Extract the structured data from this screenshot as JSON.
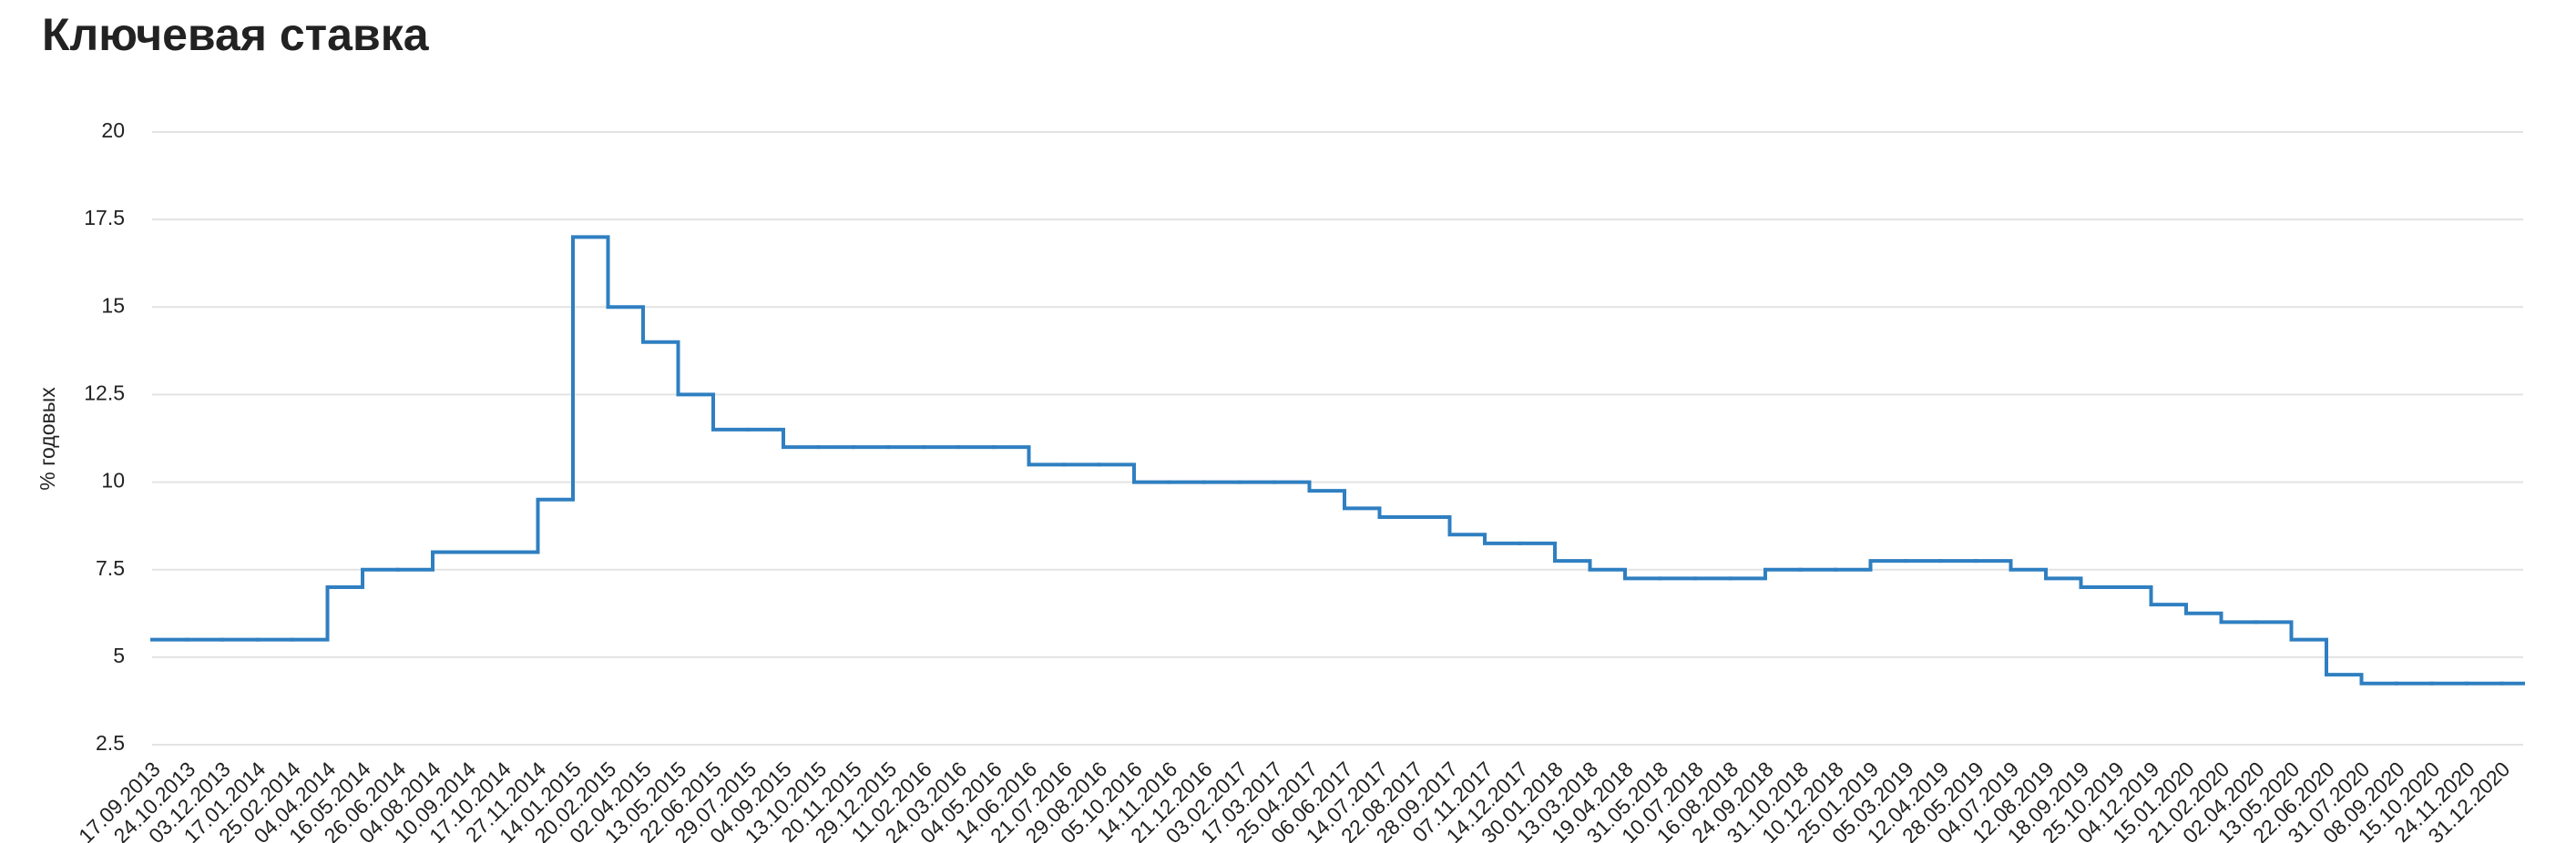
{
  "chart_data": {
    "type": "line",
    "step": "after",
    "title": "Ключевая ставка",
    "y_label": "% годовых",
    "categories": [
      "17.09.2013",
      "24.10.2013",
      "03.12.2013",
      "17.01.2014",
      "25.02.2014",
      "04.04.2014",
      "16.05.2014",
      "26.06.2014",
      "04.08.2014",
      "10.09.2014",
      "17.10.2014",
      "27.11.2014",
      "14.01.2015",
      "20.02.2015",
      "02.04.2015",
      "13.05.2015",
      "22.06.2015",
      "29.07.2015",
      "04.09.2015",
      "13.10.2015",
      "20.11.2015",
      "29.12.2015",
      "11.02.2016",
      "24.03.2016",
      "04.05.2016",
      "14.06.2016",
      "21.07.2016",
      "29.08.2016",
      "05.10.2016",
      "14.11.2016",
      "21.12.2016",
      "03.02.2017",
      "17.03.2017",
      "25.04.2017",
      "06.06.2017",
      "14.07.2017",
      "22.08.2017",
      "28.09.2017",
      "07.11.2017",
      "14.12.2017",
      "30.01.2018",
      "13.03.2018",
      "19.04.2018",
      "31.05.2018",
      "10.07.2018",
      "16.08.2018",
      "24.09.2018",
      "31.10.2018",
      "10.12.2018",
      "25.01.2019",
      "05.03.2019",
      "12.04.2019",
      "28.05.2019",
      "04.07.2019",
      "12.08.2019",
      "18.09.2019",
      "25.10.2019",
      "04.12.2019",
      "15.01.2020",
      "21.02.2020",
      "02.04.2020",
      "13.05.2020",
      "22.06.2020",
      "31.07.2020",
      "08.09.2020",
      "15.10.2020",
      "24.11.2020",
      "31.12.2020"
    ],
    "values": [
      5.5,
      5.5,
      5.5,
      5.5,
      5.5,
      7,
      7.5,
      7.5,
      8,
      8,
      8,
      9.5,
      17,
      15,
      14,
      12.5,
      11.5,
      11.5,
      11,
      11,
      11,
      11,
      11,
      11,
      11,
      10.5,
      10.5,
      10.5,
      10,
      10,
      10,
      10,
      10,
      9.75,
      9.25,
      9,
      9,
      8.5,
      8.25,
      8.25,
      7.75,
      7.5,
      7.25,
      7.25,
      7.25,
      7.25,
      7.5,
      7.5,
      7.5,
      7.75,
      7.75,
      7.75,
      7.75,
      7.5,
      7.25,
      7,
      7,
      6.5,
      6.25,
      6,
      6,
      5.5,
      4.5,
      4.25,
      4.25,
      4.25,
      4.25,
      4.25
    ],
    "color": "#2f7fc1",
    "ylim": [
      2.5,
      20
    ],
    "yticks": [
      2.5,
      5,
      7.5,
      10,
      12.5,
      15,
      17.5,
      20
    ],
    "grid": true
  }
}
